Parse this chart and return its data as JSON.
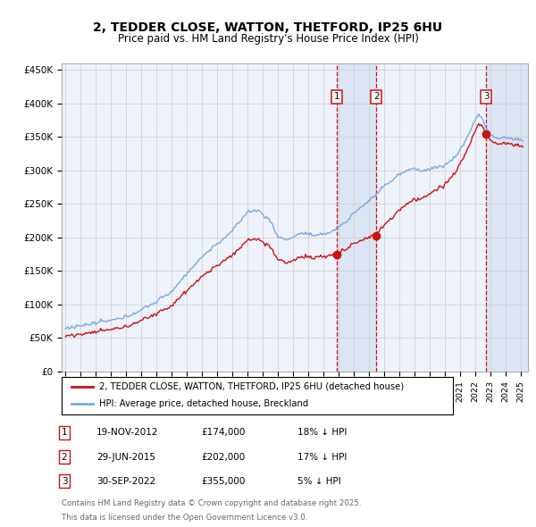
{
  "title": "2, TEDDER CLOSE, WATTON, THETFORD, IP25 6HU",
  "subtitle": "Price paid vs. HM Land Registry's House Price Index (HPI)",
  "title_fontsize": 10,
  "subtitle_fontsize": 8.5,
  "bg_color": "#ffffff",
  "plot_bg_color": "#eef2fb",
  "grid_color": "#cccccc",
  "hpi_color": "#7aaadd",
  "price_color": "#cc1111",
  "vline_color": "#cc1111",
  "vshade_color": "#ccdcf0",
  "yticks": [
    0,
    50000,
    100000,
    150000,
    200000,
    250000,
    300000,
    350000,
    400000,
    450000
  ],
  "ytick_labels": [
    "£0",
    "£50K",
    "£100K",
    "£150K",
    "£200K",
    "£250K",
    "£300K",
    "£350K",
    "£400K",
    "£450K"
  ],
  "sale_prices": [
    174000,
    202000,
    355000
  ],
  "sale_labels": [
    "1",
    "2",
    "3"
  ],
  "sale_date_strs": [
    "19-NOV-2012",
    "29-JUN-2015",
    "30-SEP-2022"
  ],
  "sale_pct_hpi": [
    "18% ↓ HPI",
    "17% ↓ HPI",
    "5% ↓ HPI"
  ],
  "legend_label_price": "2, TEDDER CLOSE, WATTON, THETFORD, IP25 6HU (detached house)",
  "legend_label_hpi": "HPI: Average price, detached house, Breckland",
  "footer": "Contains HM Land Registry data © Crown copyright and database right 2025.\nThis data is licensed under the Open Government Licence v3.0."
}
